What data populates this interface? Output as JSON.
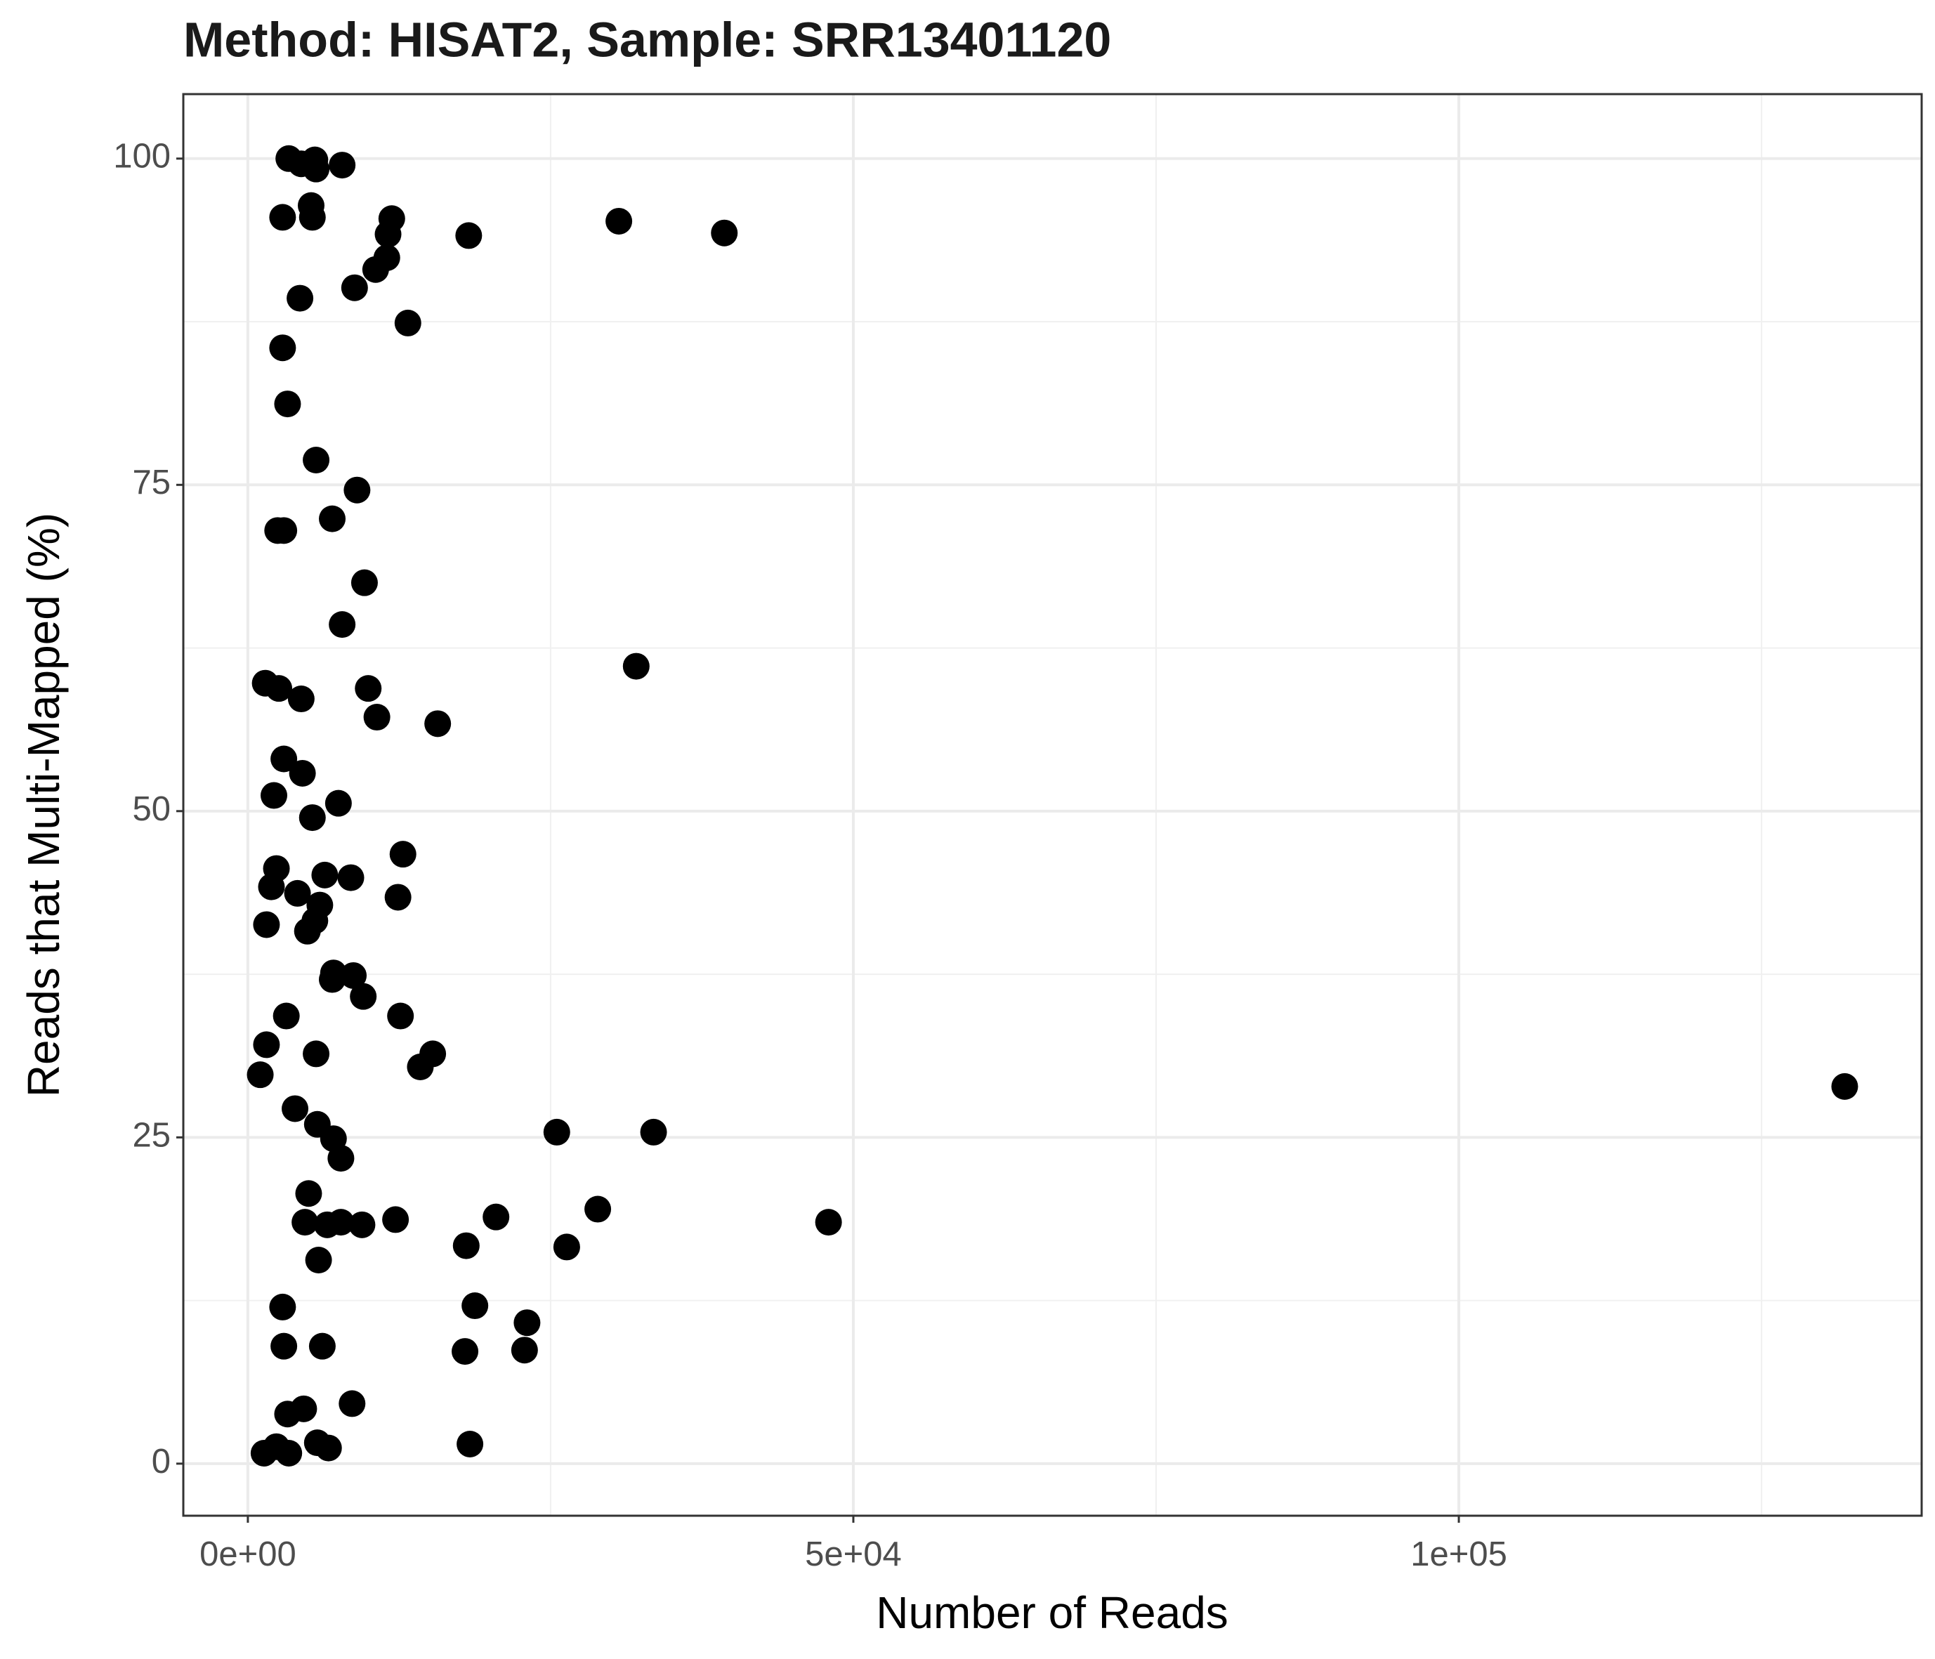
{
  "chart_data": {
    "type": "scatter",
    "title": "Method: HISAT2, Sample: SRR13401120",
    "x_label": "Number of Reads",
    "y_label": "Reads that Multi-Mapped (%)",
    "xlim": [
      -5330,
      138220
    ],
    "ylim": [
      -3.99,
      104.94
    ],
    "xticks": [
      {
        "value": 0,
        "label": "0e+00"
      },
      {
        "value": 50000,
        "label": "5e+04"
      },
      {
        "value": 100000,
        "label": "1e+05"
      }
    ],
    "yticks": [
      0,
      25,
      50,
      75,
      100
    ],
    "grid": true,
    "series": [
      {
        "color": "#000000",
        "x": [
          3381,
          4406,
          5533,
          5635,
          7787,
          2869,
          5225,
          5328,
          11885,
          11578,
          11475,
          10553,
          8812,
          4303,
          13217,
          18238,
          30636,
          39345,
          2869,
          3279,
          5635,
          9017,
          6967,
          2459,
          2971,
          9631,
          7787,
          32070,
          1434,
          2562,
          4406,
          9939,
          10656,
          15676,
          2971,
          4508,
          2152,
          7480,
          5328,
          12808,
          2357,
          6352,
          8504,
          1947,
          4098,
          12398,
          5943,
          5533,
          1537,
          4918,
          7070,
          8709,
          6967,
          9529,
          3176,
          12603,
          1537,
          5635,
          15266,
          14242,
          1025,
          131866,
          3893,
          5738,
          7070,
          25513,
          33504,
          7684,
          5020,
          28894,
          20492,
          12193,
          47951,
          4713,
          7684,
          6557,
          9426,
          18033,
          26332,
          5840,
          2869,
          18750,
          23054,
          2971,
          6148,
          17930,
          22849,
          8607,
          4611,
          3279,
          5738,
          6660,
          1332,
          2357,
          3381,
          18340
        ],
        "values": [
          100,
          99.6,
          99.9,
          99.2,
          99.5,
          95.5,
          96.4,
          95.5,
          95.4,
          94.2,
          92.4,
          91.5,
          90.1,
          89.3,
          87.4,
          94.1,
          95.2,
          94.3,
          85.5,
          81.2,
          76.9,
          74.6,
          72.4,
          71.5,
          71.5,
          67.5,
          64.3,
          61.1,
          59.8,
          59.4,
          58.6,
          59.4,
          57.2,
          56.7,
          54.0,
          52.9,
          51.2,
          50.6,
          49.5,
          46.7,
          45.6,
          45.1,
          44.9,
          44.2,
          43.7,
          43.4,
          42.8,
          41.6,
          41.3,
          40.8,
          37.6,
          37.4,
          37.1,
          35.8,
          34.3,
          34.3,
          32.1,
          31.4,
          31.4,
          30.4,
          29.8,
          28.9,
          27.2,
          26.0,
          24.9,
          25.4,
          25.4,
          23.4,
          20.7,
          19.5,
          18.9,
          18.7,
          18.5,
          18.5,
          18.5,
          18.3,
          18.3,
          16.7,
          16.6,
          15.6,
          12.0,
          12.1,
          10.8,
          9.0,
          9.0,
          8.6,
          8.7,
          4.6,
          4.2,
          3.8,
          1.6,
          1.2,
          0.8,
          1.3,
          0.8,
          1.5
        ]
      }
    ]
  }
}
